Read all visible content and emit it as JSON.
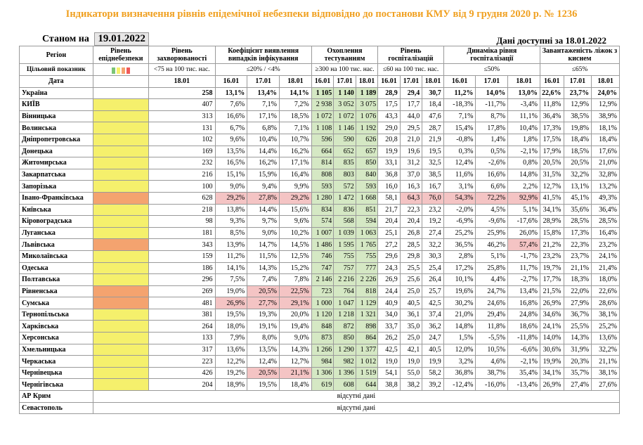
{
  "title": "Індикатори визначення рівнів епідемічної небезпеки відповідно до постанови КМУ від 9 грудня 2020 р. № 1236",
  "as_of_label": "Станом на",
  "as_of_date": "19.01.2022",
  "data_available": "Дані доступні за  18.01.2022",
  "headers": {
    "region": "Регіон",
    "target": "Цільовий показник",
    "date": "Дата",
    "level": "Рівень епіднебезпеки",
    "incidence": "Рівень захворюваності",
    "detection": "Коефіцієнт виявлення випадків інфікування",
    "coverage": "Охоплення тестуванням",
    "hosp": "Рівень госпіталізацій",
    "dynamics": "Динаміка рівня госпіталізації",
    "beds": "Завантаженість ліжок з киснем"
  },
  "targets": {
    "incidence": "<75 на 100 тис. нас.",
    "detection": "≤20% / <4%",
    "coverage": "≥300 на 100 тис. нас.",
    "hosp": "≤60 на 100 тис. нас.",
    "dynamics": "≤50%",
    "beds": "≤65%"
  },
  "legend_colors": [
    "#7cc576",
    "#f5f06c",
    "#f4a36f",
    "#f05a5a"
  ],
  "dates": {
    "incidence": "18.01",
    "three": [
      "16.01",
      "17.01",
      "18.01"
    ]
  },
  "rows": [
    {
      "name": "Україна",
      "level": "",
      "inc": "258",
      "det": [
        "13,1%",
        "13,4%",
        "14,1%"
      ],
      "cov": [
        "1 105",
        "1 140",
        "1 189"
      ],
      "hosp": [
        "28,9",
        "29,4",
        "30,7"
      ],
      "dyn": [
        "11,2%",
        "14,0%",
        "13,0%"
      ],
      "beds": [
        "22,6%",
        "23,7%",
        "24,0%"
      ],
      "total": true
    },
    {
      "name": "КИЇВ",
      "level": "yellow",
      "inc": "407",
      "det": [
        "7,6%",
        "7,1%",
        "7,2%"
      ],
      "cov": [
        "2 938",
        "3 052",
        "3 075"
      ],
      "hosp": [
        "17,5",
        "17,7",
        "18,4"
      ],
      "dyn": [
        "-18,3%",
        "-11,7%",
        "-3,4%"
      ],
      "beds": [
        "11,8%",
        "12,9%",
        "12,9%"
      ]
    },
    {
      "name": "Вінницька",
      "level": "yellow",
      "inc": "313",
      "det": [
        "16,6%",
        "17,1%",
        "18,5%"
      ],
      "cov": [
        "1 072",
        "1 072",
        "1 076"
      ],
      "hosp": [
        "43,3",
        "44,0",
        "47,6"
      ],
      "dyn": [
        "7,1%",
        "8,7%",
        "11,1%"
      ],
      "beds": [
        "36,4%",
        "38,5%",
        "38,9%"
      ]
    },
    {
      "name": "Волинська",
      "level": "yellow",
      "inc": "131",
      "det": [
        "6,7%",
        "6,8%",
        "7,1%"
      ],
      "cov": [
        "1 108",
        "1 146",
        "1 192"
      ],
      "hosp": [
        "29,0",
        "29,5",
        "28,7"
      ],
      "dyn": [
        "15,4%",
        "17,8%",
        "10,4%"
      ],
      "beds": [
        "17,3%",
        "19,8%",
        "18,1%"
      ]
    },
    {
      "name": "Дніпропетровська",
      "level": "yellow",
      "inc": "102",
      "det": [
        "9,6%",
        "10,4%",
        "10,7%"
      ],
      "cov": [
        "596",
        "590",
        "626"
      ],
      "hosp": [
        "20,8",
        "21,0",
        "21,9"
      ],
      "dyn": [
        "-0,8%",
        "1,4%",
        "1,8%"
      ],
      "beds": [
        "17,5%",
        "18,4%",
        "18,4%"
      ]
    },
    {
      "name": "Донецька",
      "level": "yellow",
      "inc": "169",
      "det": [
        "13,5%",
        "14,4%",
        "16,2%"
      ],
      "cov": [
        "664",
        "652",
        "657"
      ],
      "hosp": [
        "19,9",
        "19,6",
        "19,5"
      ],
      "dyn": [
        "0,3%",
        "0,5%",
        "-2,1%"
      ],
      "beds": [
        "17,9%",
        "18,5%",
        "17,6%"
      ]
    },
    {
      "name": "Житомирська",
      "level": "yellow",
      "inc": "232",
      "det": [
        "16,5%",
        "16,2%",
        "17,1%"
      ],
      "cov": [
        "814",
        "835",
        "850"
      ],
      "hosp": [
        "33,1",
        "31,2",
        "32,5"
      ],
      "dyn": [
        "12,4%",
        "-2,6%",
        "0,8%"
      ],
      "beds": [
        "20,5%",
        "20,5%",
        "21,0%"
      ]
    },
    {
      "name": "Закарпатська",
      "level": "yellow",
      "inc": "216",
      "det": [
        "15,1%",
        "15,9%",
        "16,4%"
      ],
      "cov": [
        "808",
        "803",
        "840"
      ],
      "hosp": [
        "36,8",
        "37,0",
        "38,5"
      ],
      "dyn": [
        "11,6%",
        "16,6%",
        "14,8%"
      ],
      "beds": [
        "31,5%",
        "32,2%",
        "32,8%"
      ]
    },
    {
      "name": "Запорізька",
      "level": "yellow",
      "inc": "100",
      "det": [
        "9,0%",
        "9,4%",
        "9,9%"
      ],
      "cov": [
        "593",
        "572",
        "593"
      ],
      "hosp": [
        "16,0",
        "16,3",
        "16,7"
      ],
      "dyn": [
        "3,1%",
        "6,6%",
        "2,2%"
      ],
      "beds": [
        "12,7%",
        "13,1%",
        "13,2%"
      ]
    },
    {
      "name": "Івано-Франківська",
      "level": "orange",
      "inc": "628",
      "det": [
        "29,2%",
        "27,8%",
        "29,2%"
      ],
      "detRed": [
        true,
        true,
        true
      ],
      "cov": [
        "1 280",
        "1 472",
        "1 668"
      ],
      "hosp": [
        "58,1",
        "64,3",
        "76,0"
      ],
      "hospRed": [
        false,
        true,
        true
      ],
      "dyn": [
        "54,3%",
        "72,2%",
        "92,9%"
      ],
      "dynRed": [
        true,
        true,
        true
      ],
      "beds": [
        "41,5%",
        "45,1%",
        "49,3%"
      ]
    },
    {
      "name": "Київська",
      "level": "yellow",
      "inc": "218",
      "det": [
        "13,8%",
        "14,4%",
        "15,6%"
      ],
      "cov": [
        "834",
        "836",
        "851"
      ],
      "hosp": [
        "21,7",
        "22,3",
        "23,2"
      ],
      "dyn": [
        "-2,0%",
        "4,5%",
        "5,1%"
      ],
      "beds": [
        "34,1%",
        "35,6%",
        "36,4%"
      ]
    },
    {
      "name": "Кіровоградська",
      "level": "yellow",
      "inc": "98",
      "det": [
        "9,3%",
        "9,7%",
        "9,6%"
      ],
      "cov": [
        "574",
        "568",
        "594"
      ],
      "hosp": [
        "20,4",
        "20,4",
        "19,2"
      ],
      "dyn": [
        "-6,9%",
        "-9,6%",
        "-17,6%"
      ],
      "beds": [
        "28,9%",
        "28,5%",
        "28,5%"
      ]
    },
    {
      "name": "Луганська",
      "level": "yellow",
      "inc": "181",
      "det": [
        "8,5%",
        "9,0%",
        "10,2%"
      ],
      "cov": [
        "1 007",
        "1 039",
        "1 063"
      ],
      "hosp": [
        "25,1",
        "26,8",
        "27,4"
      ],
      "dyn": [
        "25,2%",
        "25,9%",
        "26,0%"
      ],
      "beds": [
        "15,8%",
        "17,3%",
        "16,4%"
      ]
    },
    {
      "name": "Львівська",
      "level": "orange",
      "inc": "343",
      "det": [
        "13,9%",
        "14,7%",
        "14,5%"
      ],
      "cov": [
        "1 486",
        "1 595",
        "1 765"
      ],
      "hosp": [
        "27,2",
        "28,5",
        "32,2"
      ],
      "dyn": [
        "36,5%",
        "46,2%",
        "57,4%"
      ],
      "dynRed": [
        false,
        false,
        true
      ],
      "beds": [
        "21,2%",
        "22,3%",
        "23,2%"
      ]
    },
    {
      "name": "Миколаївська",
      "level": "yellow",
      "inc": "159",
      "det": [
        "11,2%",
        "11,5%",
        "12,5%"
      ],
      "cov": [
        "746",
        "755",
        "755"
      ],
      "hosp": [
        "29,6",
        "29,8",
        "30,3"
      ],
      "dyn": [
        "2,8%",
        "5,1%",
        "-1,7%"
      ],
      "beds": [
        "23,2%",
        "23,7%",
        "24,1%"
      ]
    },
    {
      "name": "Одеська",
      "level": "yellow",
      "inc": "186",
      "det": [
        "14,1%",
        "14,3%",
        "15,2%"
      ],
      "cov": [
        "747",
        "757",
        "777"
      ],
      "hosp": [
        "24,3",
        "25,5",
        "25,4"
      ],
      "dyn": [
        "17,2%",
        "25,8%",
        "11,7%"
      ],
      "beds": [
        "19,7%",
        "21,1%",
        "21,4%"
      ]
    },
    {
      "name": "Полтавська",
      "level": "yellow",
      "inc": "296",
      "det": [
        "7,5%",
        "7,4%",
        "7,8%"
      ],
      "cov": [
        "2 146",
        "2 216",
        "2 226"
      ],
      "hosp": [
        "26,9",
        "25,6",
        "26,4"
      ],
      "dyn": [
        "10,1%",
        "4,4%",
        "-2,7%"
      ],
      "beds": [
        "17,7%",
        "18,3%",
        "18,0%"
      ]
    },
    {
      "name": "Рівненська",
      "level": "orange",
      "inc": "269",
      "det": [
        "19,0%",
        "20,5%",
        "22,5%"
      ],
      "detRed": [
        false,
        true,
        true
      ],
      "cov": [
        "723",
        "764",
        "818"
      ],
      "hosp": [
        "24,4",
        "25,0",
        "25,7"
      ],
      "dyn": [
        "19,6%",
        "24,7%",
        "13,4%"
      ],
      "beds": [
        "21,5%",
        "22,0%",
        "22,6%"
      ]
    },
    {
      "name": "Сумська",
      "level": "orange",
      "inc": "481",
      "det": [
        "26,9%",
        "27,7%",
        "29,1%"
      ],
      "detRed": [
        true,
        true,
        true
      ],
      "cov": [
        "1 000",
        "1 047",
        "1 129"
      ],
      "hosp": [
        "40,9",
        "40,5",
        "42,5"
      ],
      "dyn": [
        "30,2%",
        "24,6%",
        "16,8%"
      ],
      "beds": [
        "26,9%",
        "27,9%",
        "28,6%"
      ]
    },
    {
      "name": "Тернопільська",
      "level": "yellow",
      "inc": "381",
      "det": [
        "19,5%",
        "19,3%",
        "20,0%"
      ],
      "cov": [
        "1 120",
        "1 218",
        "1 321"
      ],
      "hosp": [
        "34,0",
        "36,1",
        "37,4"
      ],
      "dyn": [
        "21,0%",
        "29,4%",
        "24,8%"
      ],
      "beds": [
        "34,6%",
        "36,7%",
        "38,1%"
      ]
    },
    {
      "name": "Харківська",
      "level": "yellow",
      "inc": "264",
      "det": [
        "18,0%",
        "19,1%",
        "19,4%"
      ],
      "cov": [
        "848",
        "872",
        "898"
      ],
      "hosp": [
        "33,7",
        "35,0",
        "36,2"
      ],
      "dyn": [
        "14,8%",
        "11,8%",
        "18,6%"
      ],
      "beds": [
        "24,1%",
        "25,5%",
        "25,2%"
      ]
    },
    {
      "name": "Херсонська",
      "level": "yellow",
      "inc": "133",
      "det": [
        "7,9%",
        "8,0%",
        "9,0%"
      ],
      "cov": [
        "873",
        "850",
        "864"
      ],
      "hosp": [
        "26,2",
        "25,0",
        "24,7"
      ],
      "dyn": [
        "1,5%",
        "-5,5%",
        "-11,8%"
      ],
      "beds": [
        "14,0%",
        "14,3%",
        "13,6%"
      ]
    },
    {
      "name": "Хмельницька",
      "level": "yellow",
      "inc": "317",
      "det": [
        "13,6%",
        "13,5%",
        "14,3%"
      ],
      "cov": [
        "1 266",
        "1 290",
        "1 377"
      ],
      "hosp": [
        "42,5",
        "42,1",
        "40,5"
      ],
      "dyn": [
        "12,0%",
        "10,5%",
        "-6,6%"
      ],
      "beds": [
        "30,6%",
        "31,9%",
        "32,2%"
      ]
    },
    {
      "name": "Черкаська",
      "level": "yellow",
      "inc": "223",
      "det": [
        "12,2%",
        "12,4%",
        "12,7%"
      ],
      "cov": [
        "984",
        "982",
        "1 012"
      ],
      "hosp": [
        "19,0",
        "19,0",
        "19,9"
      ],
      "dyn": [
        "3,2%",
        "4,6%",
        "-2,1%"
      ],
      "beds": [
        "19,9%",
        "20,3%",
        "21,1%"
      ]
    },
    {
      "name": "Чернівецька",
      "level": "yellow",
      "inc": "426",
      "det": [
        "19,2%",
        "20,5%",
        "21,1%"
      ],
      "detRed": [
        false,
        true,
        true
      ],
      "cov": [
        "1 306",
        "1 396",
        "1 519"
      ],
      "hosp": [
        "54,1",
        "55,0",
        "58,2"
      ],
      "dyn": [
        "36,8%",
        "38,7%",
        "35,4%"
      ],
      "beds": [
        "34,1%",
        "35,7%",
        "38,1%"
      ]
    },
    {
      "name": "Чернігівська",
      "level": "yellow",
      "inc": "204",
      "det": [
        "18,9%",
        "19,5%",
        "18,4%"
      ],
      "cov": [
        "619",
        "608",
        "644"
      ],
      "hosp": [
        "38,8",
        "38,2",
        "39,2"
      ],
      "dyn": [
        "-12,4%",
        "-16,0%",
        "-13,4%"
      ],
      "beds": [
        "26,9%",
        "27,4%",
        "27,6%"
      ]
    }
  ],
  "na_rows": [
    {
      "name": "АР Крим",
      "text": "відсутні дані"
    },
    {
      "name": "Севастополь",
      "text": "відсутні дані"
    }
  ]
}
